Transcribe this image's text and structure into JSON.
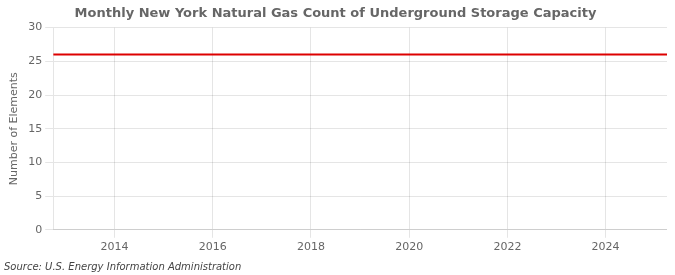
{
  "chart_data": {
    "type": "line",
    "title": "Monthly New York Natural Gas Count of Underground Storage Capacity",
    "ylabel": "Number of Elements",
    "annotations": [
      "Source: U.S. Energy Information Administration"
    ],
    "x": [
      2012.75,
      2025.25
    ],
    "values": [
      26,
      26
    ],
    "color": "#dd0000",
    "xlim": [
      2012.75,
      2025.25
    ],
    "xticks": [
      2014,
      2016,
      2018,
      2020,
      2022,
      2024
    ],
    "ylim": [
      0,
      30
    ],
    "yticks": [
      0,
      5,
      10,
      15,
      20,
      25,
      30
    ],
    "grid": true
  }
}
